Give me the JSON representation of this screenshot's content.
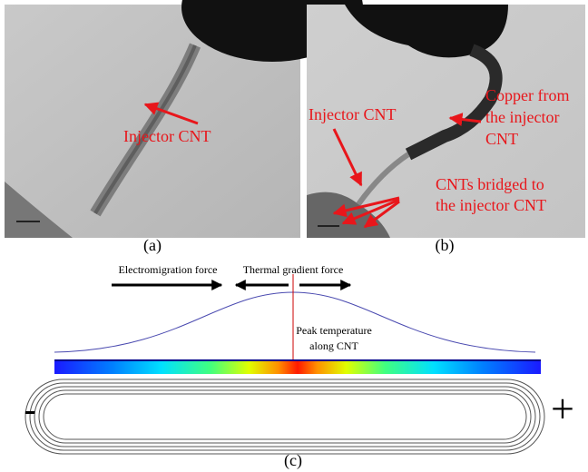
{
  "panel_a": {
    "label": "(a)",
    "annotation": "Injector CNT"
  },
  "panel_b": {
    "label": "(b)",
    "annotations": {
      "injector": "Injector CNT",
      "copper": [
        "Copper from",
        "the injector",
        "CNT"
      ],
      "bridged": [
        "CNTs bridged to",
        "the injector CNT"
      ]
    }
  },
  "panel_c": {
    "label": "(c)",
    "electromigration": "Electromigration force",
    "thermal": "Thermal gradient force",
    "peak": [
      "Peak temperature",
      "along CNT"
    ],
    "minus": "-",
    "plus": "+"
  }
}
